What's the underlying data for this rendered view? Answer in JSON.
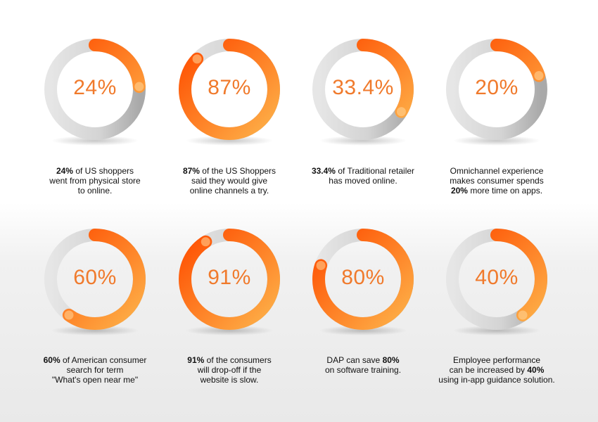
{
  "colors": {
    "track_light": "#e6e6e6",
    "track_dark": "#a9a9a9",
    "arc_start": "#fdb24a",
    "arc_end": "#ff4d00",
    "percent_text": "#f07a2c"
  },
  "chart_data": [
    {
      "type": "pie",
      "value": 24,
      "label": "24%",
      "caption": [
        [
          "24%",
          " of US shoppers"
        ],
        [
          "",
          "went from physical store"
        ],
        [
          "",
          "to online."
        ]
      ]
    },
    {
      "type": "pie",
      "value": 87,
      "label": "87%",
      "caption": [
        [
          "87%",
          " of the US Shoppers"
        ],
        [
          "",
          "said they would give"
        ],
        [
          "",
          "online channels a try."
        ]
      ]
    },
    {
      "type": "pie",
      "value": 33.4,
      "label": "33.4%",
      "caption": [
        [
          "33.4%",
          " of Traditional retailer"
        ],
        [
          "",
          "has moved online."
        ]
      ]
    },
    {
      "type": "pie",
      "value": 20,
      "label": "20%",
      "caption": [
        [
          "",
          "Omnichannel experience"
        ],
        [
          "",
          "makes consumer spends"
        ],
        [
          "20%",
          " more time on apps."
        ]
      ]
    },
    {
      "type": "pie",
      "value": 60,
      "label": "60%",
      "caption": [
        [
          "60%",
          " of American consumer"
        ],
        [
          "",
          "search for term"
        ],
        [
          "",
          "\"What's open near me\""
        ]
      ]
    },
    {
      "type": "pie",
      "value": 91,
      "label": "91%",
      "caption": [
        [
          "91%",
          " of the consumers"
        ],
        [
          "",
          "will drop-off if the"
        ],
        [
          "",
          "website is slow."
        ]
      ]
    },
    {
      "type": "pie",
      "value": 80,
      "label": "80%",
      "caption": [
        [
          "",
          "DAP can save "
        ],
        [
          "80%",
          ""
        ],
        [
          "",
          "on software training."
        ]
      ]
    },
    {
      "type": "pie",
      "value": 40,
      "label": "40%",
      "caption": [
        [
          "",
          "Employee performance"
        ],
        [
          "",
          "can be increased by "
        ],
        [
          "40%",
          ""
        ],
        [
          "",
          "using in-app guidance solution."
        ]
      ]
    }
  ]
}
